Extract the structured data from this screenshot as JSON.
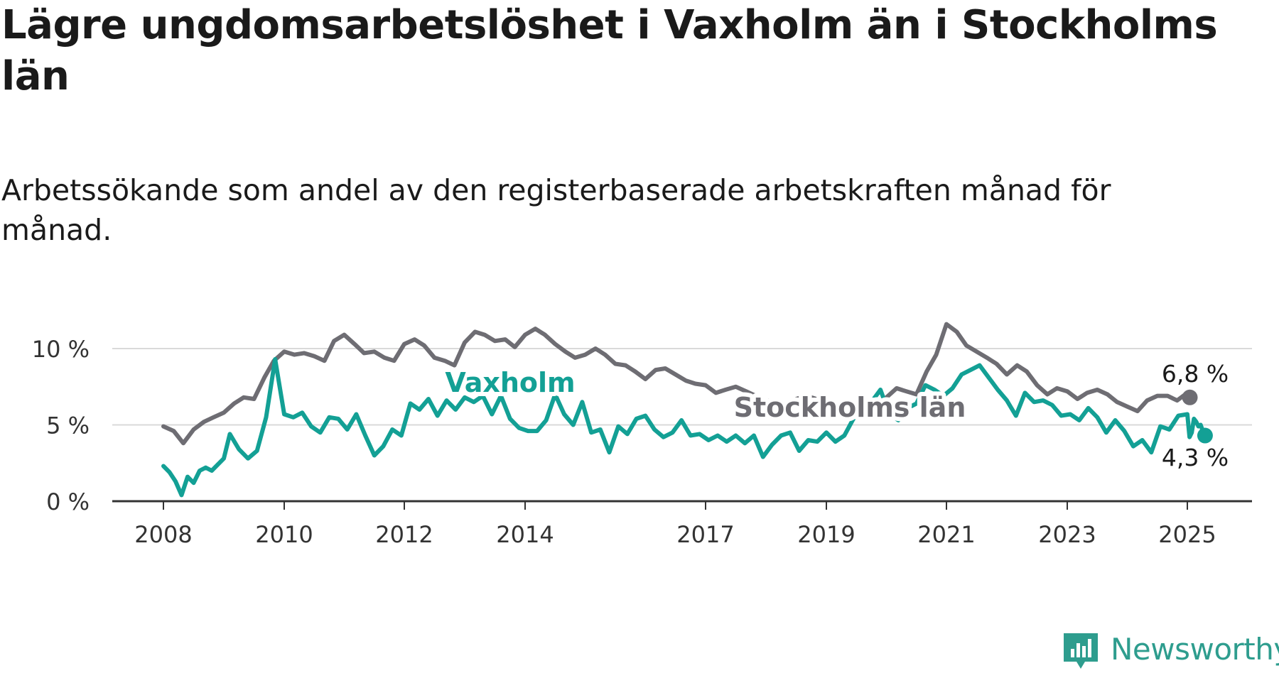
{
  "title": "Lägre ungdomsarbetslöshet i Vaxholm än i Stockholms län",
  "subtitle": "Arbetssökande som andel av den registerbaserade arbetskraften månad för månad.",
  "brand": {
    "name": "Newsworthy",
    "color": "#2e9d8e"
  },
  "chart_data": {
    "type": "line",
    "x_unit": "year (decimal)",
    "xlim": [
      2008,
      2025.2
    ],
    "ylim": [
      0,
      10
    ],
    "y_ticks": [
      0,
      5,
      10
    ],
    "y_tick_labels": [
      "0 %",
      "5 %",
      "10 %"
    ],
    "x_ticks": [
      2008,
      2010,
      2012,
      2014,
      2017,
      2019,
      2021,
      2023,
      2025
    ],
    "x_tick_labels": [
      "2008",
      "2010",
      "2012",
      "2014",
      "2017",
      "2019",
      "2021",
      "2023",
      "2025"
    ],
    "grid": "horizontal",
    "series": [
      {
        "name": "Stockholms län",
        "color": "#6e6d73",
        "end_label": "6,8 %",
        "points": [
          [
            2008.0,
            4.9
          ],
          [
            2008.17,
            4.6
          ],
          [
            2008.33,
            3.8
          ],
          [
            2008.5,
            4.7
          ],
          [
            2008.67,
            5.2
          ],
          [
            2008.83,
            5.5
          ],
          [
            2009.0,
            5.8
          ],
          [
            2009.17,
            6.4
          ],
          [
            2009.33,
            6.8
          ],
          [
            2009.5,
            6.7
          ],
          [
            2009.67,
            8.1
          ],
          [
            2009.83,
            9.2
          ],
          [
            2010.0,
            9.8
          ],
          [
            2010.17,
            9.6
          ],
          [
            2010.33,
            9.7
          ],
          [
            2010.5,
            9.5
          ],
          [
            2010.67,
            9.2
          ],
          [
            2010.83,
            10.5
          ],
          [
            2011.0,
            10.9
          ],
          [
            2011.17,
            10.3
          ],
          [
            2011.33,
            9.7
          ],
          [
            2011.5,
            9.8
          ],
          [
            2011.67,
            9.4
          ],
          [
            2011.83,
            9.2
          ],
          [
            2012.0,
            10.3
          ],
          [
            2012.17,
            10.6
          ],
          [
            2012.33,
            10.2
          ],
          [
            2012.5,
            9.4
          ],
          [
            2012.67,
            9.2
          ],
          [
            2012.83,
            8.9
          ],
          [
            2013.0,
            10.4
          ],
          [
            2013.17,
            11.1
          ],
          [
            2013.33,
            10.9
          ],
          [
            2013.5,
            10.5
          ],
          [
            2013.67,
            10.6
          ],
          [
            2013.83,
            10.1
          ],
          [
            2014.0,
            10.9
          ],
          [
            2014.17,
            11.3
          ],
          [
            2014.33,
            10.9
          ],
          [
            2014.5,
            10.3
          ],
          [
            2014.67,
            9.8
          ],
          [
            2014.83,
            9.4
          ],
          [
            2015.0,
            9.6
          ],
          [
            2015.17,
            10.0
          ],
          [
            2015.33,
            9.6
          ],
          [
            2015.5,
            9.0
          ],
          [
            2015.67,
            8.9
          ],
          [
            2015.83,
            8.5
          ],
          [
            2016.0,
            8.0
          ],
          [
            2016.17,
            8.6
          ],
          [
            2016.33,
            8.7
          ],
          [
            2016.5,
            8.3
          ],
          [
            2016.67,
            7.9
          ],
          [
            2016.83,
            7.7
          ],
          [
            2017.0,
            7.6
          ],
          [
            2017.17,
            7.1
          ],
          [
            2017.33,
            7.3
          ],
          [
            2017.5,
            7.5
          ],
          [
            2017.67,
            7.2
          ],
          [
            2017.83,
            6.9
          ],
          [
            2018.0,
            6.6
          ],
          [
            2018.17,
            6.5
          ],
          [
            2018.33,
            6.2
          ],
          [
            2018.5,
            6.7
          ],
          [
            2018.67,
            6.9
          ],
          [
            2018.83,
            6.7
          ],
          [
            2019.0,
            6.5
          ],
          [
            2019.17,
            6.3
          ],
          [
            2019.33,
            6.1
          ],
          [
            2019.5,
            6.4
          ],
          [
            2019.67,
            6.6
          ],
          [
            2019.83,
            6.2
          ],
          [
            2020.0,
            6.8
          ],
          [
            2020.17,
            7.4
          ],
          [
            2020.33,
            7.2
          ],
          [
            2020.5,
            7.0
          ],
          [
            2020.67,
            8.5
          ],
          [
            2020.83,
            9.6
          ],
          [
            2021.0,
            11.6
          ],
          [
            2021.17,
            11.1
          ],
          [
            2021.33,
            10.2
          ],
          [
            2021.5,
            9.8
          ],
          [
            2021.67,
            9.4
          ],
          [
            2021.83,
            9.0
          ],
          [
            2022.0,
            8.3
          ],
          [
            2022.17,
            8.9
          ],
          [
            2022.33,
            8.5
          ],
          [
            2022.5,
            7.6
          ],
          [
            2022.67,
            7.0
          ],
          [
            2022.83,
            7.4
          ],
          [
            2023.0,
            7.2
          ],
          [
            2023.17,
            6.7
          ],
          [
            2023.33,
            7.1
          ],
          [
            2023.5,
            7.3
          ],
          [
            2023.67,
            7.0
          ],
          [
            2023.83,
            6.5
          ],
          [
            2024.0,
            6.2
          ],
          [
            2024.17,
            5.9
          ],
          [
            2024.33,
            6.6
          ],
          [
            2024.5,
            6.9
          ],
          [
            2024.67,
            6.9
          ],
          [
            2024.83,
            6.6
          ],
          [
            2025.0,
            7.1
          ],
          [
            2025.17,
            6.8
          ]
        ]
      },
      {
        "name": "Vaxholm",
        "color": "#13a095",
        "end_label": "4,3 %",
        "points": [
          [
            2008.0,
            2.3
          ],
          [
            2008.1,
            1.9
          ],
          [
            2008.2,
            1.3
          ],
          [
            2008.3,
            0.4
          ],
          [
            2008.4,
            1.6
          ],
          [
            2008.5,
            1.2
          ],
          [
            2008.6,
            2.0
          ],
          [
            2008.7,
            2.2
          ],
          [
            2008.8,
            2.0
          ],
          [
            2008.9,
            2.4
          ],
          [
            2009.0,
            2.8
          ],
          [
            2009.1,
            4.4
          ],
          [
            2009.25,
            3.4
          ],
          [
            2009.4,
            2.8
          ],
          [
            2009.55,
            3.3
          ],
          [
            2009.7,
            5.5
          ],
          [
            2009.85,
            9.3
          ],
          [
            2010.0,
            5.7
          ],
          [
            2010.15,
            5.5
          ],
          [
            2010.3,
            5.8
          ],
          [
            2010.45,
            4.9
          ],
          [
            2010.6,
            4.5
          ],
          [
            2010.75,
            5.5
          ],
          [
            2010.9,
            5.4
          ],
          [
            2011.05,
            4.7
          ],
          [
            2011.2,
            5.7
          ],
          [
            2011.35,
            4.3
          ],
          [
            2011.5,
            3.0
          ],
          [
            2011.65,
            3.6
          ],
          [
            2011.8,
            4.7
          ],
          [
            2011.95,
            4.3
          ],
          [
            2012.1,
            6.4
          ],
          [
            2012.25,
            6.0
          ],
          [
            2012.4,
            6.7
          ],
          [
            2012.55,
            5.6
          ],
          [
            2012.7,
            6.6
          ],
          [
            2012.85,
            6.0
          ],
          [
            2013.0,
            6.8
          ],
          [
            2013.15,
            6.5
          ],
          [
            2013.3,
            6.9
          ],
          [
            2013.45,
            5.7
          ],
          [
            2013.6,
            6.9
          ],
          [
            2013.75,
            5.4
          ],
          [
            2013.9,
            4.8
          ],
          [
            2014.05,
            4.6
          ],
          [
            2014.2,
            4.6
          ],
          [
            2014.35,
            5.3
          ],
          [
            2014.5,
            7.0
          ],
          [
            2014.65,
            5.7
          ],
          [
            2014.8,
            5.0
          ],
          [
            2014.95,
            6.5
          ],
          [
            2015.1,
            4.5
          ],
          [
            2015.25,
            4.7
          ],
          [
            2015.4,
            3.2
          ],
          [
            2015.55,
            4.9
          ],
          [
            2015.7,
            4.4
          ],
          [
            2015.85,
            5.4
          ],
          [
            2016.0,
            5.6
          ],
          [
            2016.15,
            4.7
          ],
          [
            2016.3,
            4.2
          ],
          [
            2016.45,
            4.5
          ],
          [
            2016.6,
            5.3
          ],
          [
            2016.75,
            4.3
          ],
          [
            2016.9,
            4.4
          ],
          [
            2017.05,
            4.0
          ],
          [
            2017.2,
            4.3
          ],
          [
            2017.35,
            3.9
          ],
          [
            2017.5,
            4.3
          ],
          [
            2017.65,
            3.8
          ],
          [
            2017.8,
            4.3
          ],
          [
            2017.95,
            2.9
          ],
          [
            2018.1,
            3.7
          ],
          [
            2018.25,
            4.3
          ],
          [
            2018.4,
            4.5
          ],
          [
            2018.55,
            3.3
          ],
          [
            2018.7,
            4.0
          ],
          [
            2018.85,
            3.9
          ],
          [
            2019.0,
            4.5
          ],
          [
            2019.15,
            3.9
          ],
          [
            2019.3,
            4.3
          ],
          [
            2019.45,
            5.4
          ],
          [
            2019.6,
            5.8
          ],
          [
            2019.75,
            6.5
          ],
          [
            2019.9,
            7.3
          ],
          [
            2020.05,
            5.7
          ],
          [
            2020.2,
            5.3
          ],
          [
            2020.35,
            6.1
          ],
          [
            2020.5,
            6.4
          ],
          [
            2020.65,
            7.6
          ],
          [
            2020.8,
            7.3
          ],
          [
            2020.95,
            6.9
          ],
          [
            2021.1,
            7.4
          ],
          [
            2021.25,
            8.3
          ],
          [
            2021.4,
            8.6
          ],
          [
            2021.55,
            8.9
          ],
          [
            2021.7,
            8.1
          ],
          [
            2021.85,
            7.3
          ],
          [
            2022.0,
            6.6
          ],
          [
            2022.15,
            5.6
          ],
          [
            2022.3,
            7.1
          ],
          [
            2022.45,
            6.5
          ],
          [
            2022.6,
            6.6
          ],
          [
            2022.75,
            6.3
          ],
          [
            2022.9,
            5.6
          ],
          [
            2023.05,
            5.7
          ],
          [
            2023.2,
            5.3
          ],
          [
            2023.35,
            6.1
          ],
          [
            2023.5,
            5.5
          ],
          [
            2023.65,
            4.5
          ],
          [
            2023.8,
            5.3
          ],
          [
            2023.95,
            4.6
          ],
          [
            2024.1,
            3.6
          ],
          [
            2024.25,
            4.0
          ],
          [
            2024.4,
            3.2
          ],
          [
            2024.55,
            4.9
          ],
          [
            2024.7,
            4.7
          ],
          [
            2024.85,
            5.6
          ],
          [
            2025.0,
            5.7
          ],
          [
            2025.15,
            4.2
          ],
          [
            2025.3,
            4.5
          ],
          [
            2025.45,
            5.4
          ],
          [
            2025.6,
            5.2
          ],
          [
            2025.75,
            4.9
          ],
          [
            2025.9,
            5.0
          ],
          [
            2026.05,
            4.6
          ],
          [
            2026.2,
            4.3
          ]
        ]
      }
    ]
  }
}
